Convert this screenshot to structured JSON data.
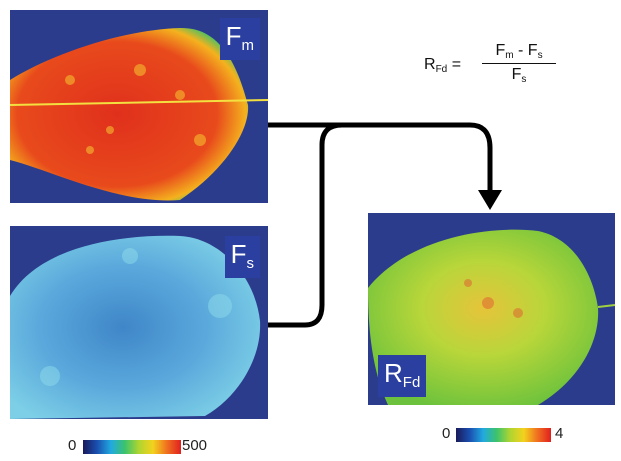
{
  "panels": {
    "fm": {
      "label_main": "F",
      "label_sub": "m"
    },
    "fs": {
      "label_main": "F",
      "label_sub": "s"
    },
    "rfd": {
      "label_main": "R",
      "label_sub": "Fd"
    }
  },
  "formula": {
    "lhs_main": "R",
    "lhs_sub": "Fd",
    "equals": "=",
    "num_a_main": "F",
    "num_a_sub": "m",
    "num_op": " - ",
    "num_b_main": "F",
    "num_b_sub": "s",
    "den_main": "F",
    "den_sub": "s"
  },
  "colorbars": {
    "left": {
      "min": "0",
      "max": "500"
    },
    "right": {
      "min": "0",
      "max": "4"
    }
  },
  "colors": {
    "panel_bg": "#2c3c8c",
    "label_bg": "#2a3fa0",
    "fm_leaf": "#e03a1e",
    "fs_leaf": "#5fb0e0",
    "rfd_leaf": "#9fd23a",
    "connector": "#000000"
  }
}
